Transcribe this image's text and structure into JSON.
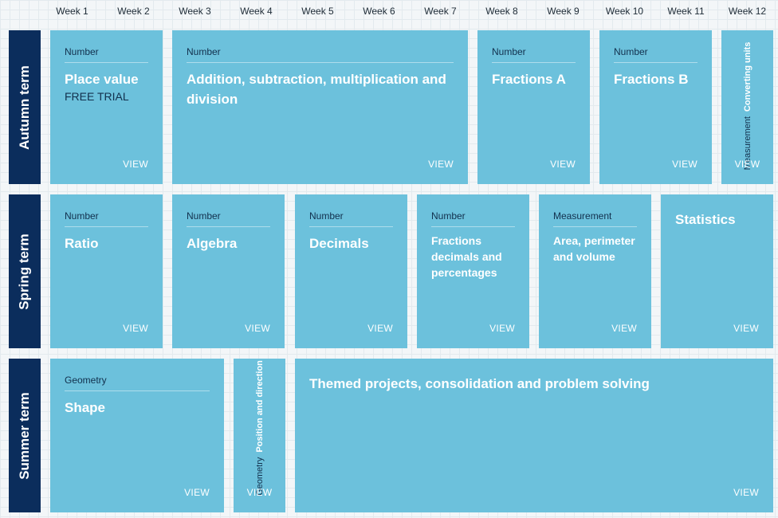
{
  "weeks": [
    "Week 1",
    "Week 2",
    "Week 3",
    "Week 4",
    "Week 5",
    "Week 6",
    "Week 7",
    "Week 8",
    "Week 9",
    "Week 10",
    "Week 11",
    "Week 12"
  ],
  "terms": {
    "autumn": "Autumn term",
    "spring": "Spring term",
    "summer": "Summer term"
  },
  "view_label": "VIEW",
  "autumn": {
    "place_value": {
      "category": "Number",
      "title": "Place value",
      "sub": "FREE TRIAL"
    },
    "four_ops": {
      "category": "Number",
      "title": "Addition, subtraction, multiplication and division"
    },
    "fractions_a": {
      "category": "Number",
      "title": "Fractions A"
    },
    "fractions_b": {
      "category": "Number",
      "title": "Fractions B"
    },
    "converting_units": {
      "category": "Measurement",
      "title": "Converting units"
    }
  },
  "spring": {
    "ratio": {
      "category": "Number",
      "title": "Ratio"
    },
    "algebra": {
      "category": "Number",
      "title": "Algebra"
    },
    "decimals": {
      "category": "Number",
      "title": "Decimals"
    },
    "fdp": {
      "category": "Number",
      "title": "Fractions decimals and percentages"
    },
    "area": {
      "category": "Measurement",
      "title": "Area, perimeter and volume"
    },
    "statistics": {
      "title": "Statistics"
    }
  },
  "summer": {
    "shape": {
      "category": "Geometry",
      "title": "Shape"
    },
    "position": {
      "category": "Geometry",
      "title": "Position and direction"
    },
    "themed": {
      "title": "Themed projects, consolidation and problem solving"
    }
  },
  "colors": {
    "card": "#6cc1dc",
    "term": "#0b2d5c",
    "category_text": "#12304d"
  }
}
